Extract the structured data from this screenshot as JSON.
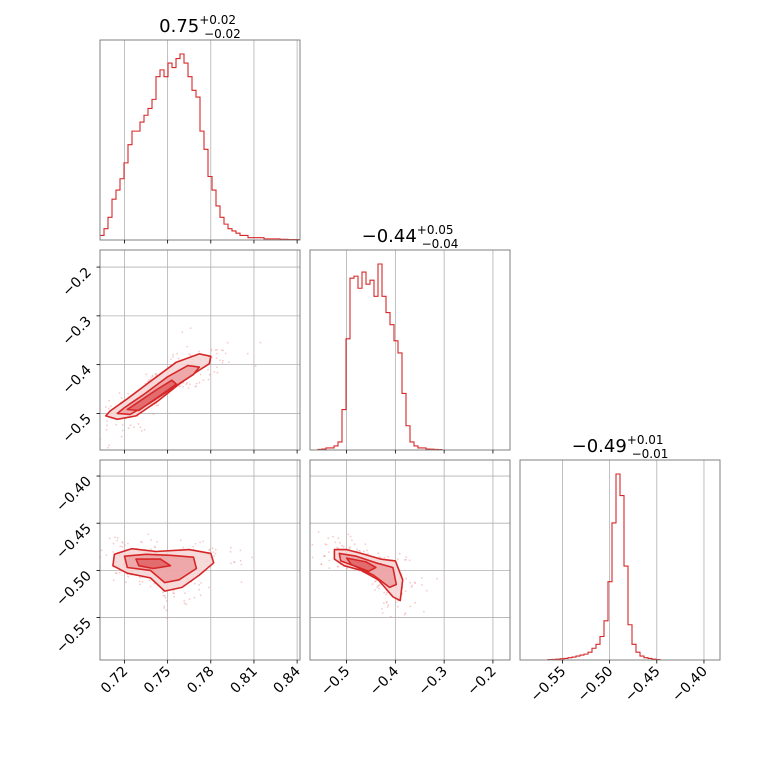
{
  "chart_data": {
    "type": "corner",
    "color": "#d62728",
    "fill_colors": [
      "#f6d3d4",
      "#ec9fa1",
      "#e16165"
    ],
    "grid": true,
    "parameters": [
      {
        "range": [
          0.703,
          0.842
        ],
        "ticks": [
          0.72,
          0.75,
          0.78,
          0.81,
          0.84
        ],
        "tick_labels": [
          "0.72",
          "0.75",
          "0.78",
          "0.81",
          "0.84"
        ],
        "title": {
          "main": "0.75",
          "sup": "+0.02",
          "sub": "−0.02"
        }
      },
      {
        "range": [
          -0.575,
          -0.165
        ],
        "ticks": [
          -0.5,
          -0.4,
          -0.3,
          -0.2
        ],
        "tick_labels": [
          "−0.5",
          "−0.4",
          "−0.3",
          "−0.2"
        ],
        "title": {
          "main": "−0.44",
          "sup": "+0.05",
          "sub": "−0.04"
        }
      },
      {
        "range": [
          -0.595,
          -0.383
        ],
        "ticks": [
          -0.55,
          -0.5,
          -0.45,
          -0.4
        ],
        "tick_labels": [
          "−0.55",
          "−0.50",
          "−0.45",
          "−0.40"
        ],
        "title": {
          "main": "−0.49",
          "sup": "+0.01",
          "sub": "−0.01"
        }
      }
    ],
    "histograms": [
      {
        "param": 0,
        "x_start": 0.703,
        "bin_width": 0.00278,
        "values": [
          0.02,
          0.05,
          0.1,
          0.18,
          0.22,
          0.27,
          0.34,
          0.42,
          0.48,
          0.48,
          0.52,
          0.55,
          0.58,
          0.62,
          0.72,
          0.75,
          0.72,
          0.78,
          0.76,
          0.8,
          0.82,
          0.78,
          0.72,
          0.66,
          0.63,
          0.48,
          0.4,
          0.28,
          0.22,
          0.15,
          0.1,
          0.07,
          0.05,
          0.04,
          0.03,
          0.02,
          0.02,
          0.01,
          0.01,
          0.01,
          0.01,
          0.005,
          0.005,
          0.005,
          0.005,
          0.003,
          0.003,
          0.002,
          0.002,
          0.002
        ]
      },
      {
        "param": 1,
        "x_start": -0.575,
        "bin_width": 0.0082,
        "values": [
          0,
          0,
          0.003,
          0.005,
          0.01,
          0.01,
          0.02,
          0.04,
          0.2,
          0.55,
          0.85,
          0.86,
          0.8,
          0.88,
          0.82,
          0.84,
          0.76,
          0.92,
          0.76,
          0.68,
          0.62,
          0.54,
          0.48,
          0.28,
          0.12,
          0.04,
          0.02,
          0.01,
          0.01,
          0.005,
          0.004,
          0.003,
          0.002,
          0,
          0,
          0,
          0,
          0,
          0,
          0,
          0,
          0,
          0,
          0,
          0,
          0,
          0,
          0,
          0,
          0
        ]
      },
      {
        "param": 2,
        "x_start": -0.595,
        "bin_width": 0.00424,
        "values": [
          0,
          0,
          0,
          0,
          0,
          0,
          0,
          0.002,
          0.003,
          0.004,
          0.006,
          0.008,
          0.012,
          0.015,
          0.02,
          0.025,
          0.03,
          0.04,
          0.06,
          0.08,
          0.12,
          0.2,
          0.4,
          0.7,
          0.95,
          0.84,
          0.48,
          0.18,
          0.08,
          0.04,
          0.02,
          0.012,
          0.008,
          0.004,
          0.002,
          0,
          0,
          0,
          0,
          0,
          0,
          0,
          0,
          0,
          0,
          0,
          0,
          0,
          0,
          0
        ]
      }
    ],
    "pairs": [
      {
        "x_param": 0,
        "y_param": 1,
        "contours": [
          [
            [
              0.707,
              -0.505
            ],
            [
              0.715,
              -0.512
            ],
            [
              0.728,
              -0.505
            ],
            [
              0.743,
              -0.475
            ],
            [
              0.758,
              -0.44
            ],
            [
              0.77,
              -0.415
            ],
            [
              0.779,
              -0.398
            ],
            [
              0.78,
              -0.383
            ],
            [
              0.772,
              -0.378
            ],
            [
              0.756,
              -0.395
            ],
            [
              0.74,
              -0.43
            ],
            [
              0.722,
              -0.47
            ],
            [
              0.71,
              -0.495
            ]
          ],
          [
            [
              0.715,
              -0.5
            ],
            [
              0.724,
              -0.502
            ],
            [
              0.738,
              -0.478
            ],
            [
              0.755,
              -0.445
            ],
            [
              0.768,
              -0.42
            ],
            [
              0.772,
              -0.405
            ],
            [
              0.764,
              -0.402
            ],
            [
              0.75,
              -0.425
            ],
            [
              0.734,
              -0.46
            ],
            [
              0.72,
              -0.488
            ]
          ],
          [
            [
              0.722,
              -0.492
            ],
            [
              0.73,
              -0.494
            ],
            [
              0.745,
              -0.463
            ],
            [
              0.756,
              -0.44
            ],
            [
              0.753,
              -0.432
            ],
            [
              0.742,
              -0.452
            ],
            [
              0.728,
              -0.48
            ]
          ]
        ]
      },
      {
        "x_param": 0,
        "y_param": 2,
        "contours": [
          [
            [
              0.713,
              -0.483
            ],
            [
              0.725,
              -0.477
            ],
            [
              0.742,
              -0.48
            ],
            [
              0.765,
              -0.478
            ],
            [
              0.78,
              -0.482
            ],
            [
              0.782,
              -0.492
            ],
            [
              0.772,
              -0.505
            ],
            [
              0.76,
              -0.518
            ],
            [
              0.748,
              -0.522
            ],
            [
              0.738,
              -0.508
            ],
            [
              0.722,
              -0.503
            ],
            [
              0.712,
              -0.495
            ]
          ],
          [
            [
              0.72,
              -0.485
            ],
            [
              0.735,
              -0.483
            ],
            [
              0.752,
              -0.484
            ],
            [
              0.768,
              -0.486
            ],
            [
              0.77,
              -0.498
            ],
            [
              0.758,
              -0.51
            ],
            [
              0.748,
              -0.513
            ],
            [
              0.738,
              -0.5
            ],
            [
              0.722,
              -0.497
            ]
          ],
          [
            [
              0.728,
              -0.488
            ],
            [
              0.745,
              -0.488
            ],
            [
              0.752,
              -0.495
            ],
            [
              0.74,
              -0.498
            ],
            [
              0.73,
              -0.495
            ]
          ]
        ]
      },
      {
        "x_param": 1,
        "y_param": 2,
        "contours": [
          [
            [
              -0.525,
              -0.478
            ],
            [
              -0.5,
              -0.478
            ],
            [
              -0.47,
              -0.482
            ],
            [
              -0.43,
              -0.488
            ],
            [
              -0.4,
              -0.49
            ],
            [
              -0.385,
              -0.51
            ],
            [
              -0.39,
              -0.532
            ],
            [
              -0.405,
              -0.528
            ],
            [
              -0.435,
              -0.51
            ],
            [
              -0.47,
              -0.5
            ],
            [
              -0.505,
              -0.495
            ],
            [
              -0.525,
              -0.488
            ]
          ],
          [
            [
              -0.515,
              -0.482
            ],
            [
              -0.48,
              -0.485
            ],
            [
              -0.44,
              -0.492
            ],
            [
              -0.405,
              -0.497
            ],
            [
              -0.398,
              -0.515
            ],
            [
              -0.412,
              -0.518
            ],
            [
              -0.445,
              -0.505
            ],
            [
              -0.485,
              -0.495
            ],
            [
              -0.512,
              -0.49
            ]
          ],
          [
            [
              -0.5,
              -0.487
            ],
            [
              -0.46,
              -0.491
            ],
            [
              -0.44,
              -0.497
            ],
            [
              -0.455,
              -0.501
            ],
            [
              -0.49,
              -0.494
            ]
          ]
        ]
      }
    ]
  }
}
